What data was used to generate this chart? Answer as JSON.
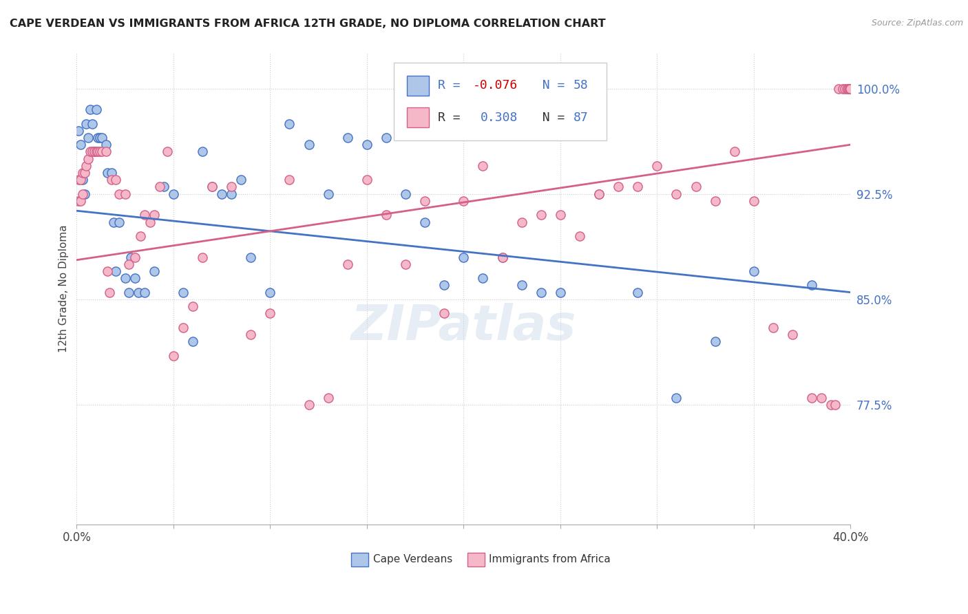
{
  "title": "CAPE VERDEAN VS IMMIGRANTS FROM AFRICA 12TH GRADE, NO DIPLOMA CORRELATION CHART",
  "source": "Source: ZipAtlas.com",
  "ylabel": "12th Grade, No Diploma",
  "xlim": [
    0.0,
    0.4
  ],
  "ylim": [
    0.69,
    1.025
  ],
  "xticks": [
    0.0,
    0.05,
    0.1,
    0.15,
    0.2,
    0.25,
    0.3,
    0.35,
    0.4
  ],
  "yticks": [
    0.775,
    0.85,
    0.925,
    1.0
  ],
  "ytick_labels": [
    "77.5%",
    "85.0%",
    "92.5%",
    "100.0%"
  ],
  "color_blue": "#aec6e8",
  "color_pink": "#f4b8c8",
  "line_blue": "#4472c4",
  "line_pink": "#d4608a",
  "R_blue": -0.076,
  "N_blue": 58,
  "R_pink": 0.308,
  "N_pink": 87,
  "legend_label_blue": "Cape Verdeans",
  "legend_label_pink": "Immigrants from Africa",
  "watermark": "ZIPatlas",
  "blue_scatter_x": [
    0.001,
    0.002,
    0.003,
    0.004,
    0.005,
    0.006,
    0.007,
    0.008,
    0.009,
    0.01,
    0.011,
    0.012,
    0.013,
    0.015,
    0.016,
    0.018,
    0.019,
    0.02,
    0.022,
    0.025,
    0.027,
    0.028,
    0.03,
    0.032,
    0.035,
    0.04,
    0.045,
    0.05,
    0.055,
    0.06,
    0.065,
    0.07,
    0.075,
    0.08,
    0.085,
    0.09,
    0.1,
    0.11,
    0.12,
    0.13,
    0.14,
    0.15,
    0.16,
    0.17,
    0.18,
    0.19,
    0.2,
    0.21,
    0.22,
    0.23,
    0.24,
    0.25,
    0.27,
    0.29,
    0.31,
    0.33,
    0.35,
    0.38
  ],
  "blue_scatter_y": [
    0.97,
    0.96,
    0.935,
    0.925,
    0.975,
    0.965,
    0.985,
    0.975,
    0.955,
    0.985,
    0.965,
    0.965,
    0.965,
    0.96,
    0.94,
    0.94,
    0.905,
    0.87,
    0.905,
    0.865,
    0.855,
    0.88,
    0.865,
    0.855,
    0.855,
    0.87,
    0.93,
    0.925,
    0.855,
    0.82,
    0.955,
    0.93,
    0.925,
    0.925,
    0.935,
    0.88,
    0.855,
    0.975,
    0.96,
    0.925,
    0.965,
    0.96,
    0.965,
    0.925,
    0.905,
    0.86,
    0.88,
    0.865,
    0.88,
    0.86,
    0.855,
    0.855,
    0.925,
    0.855,
    0.78,
    0.82,
    0.87,
    0.86
  ],
  "pink_scatter_x": [
    0.001,
    0.001,
    0.002,
    0.002,
    0.003,
    0.003,
    0.004,
    0.005,
    0.006,
    0.007,
    0.008,
    0.009,
    0.01,
    0.011,
    0.012,
    0.013,
    0.015,
    0.016,
    0.017,
    0.018,
    0.02,
    0.022,
    0.025,
    0.027,
    0.03,
    0.033,
    0.035,
    0.038,
    0.04,
    0.043,
    0.047,
    0.05,
    0.055,
    0.06,
    0.065,
    0.07,
    0.08,
    0.09,
    0.1,
    0.11,
    0.12,
    0.13,
    0.14,
    0.15,
    0.16,
    0.17,
    0.18,
    0.19,
    0.2,
    0.21,
    0.22,
    0.23,
    0.24,
    0.25,
    0.26,
    0.27,
    0.28,
    0.29,
    0.3,
    0.31,
    0.32,
    0.33,
    0.34,
    0.35,
    0.36,
    0.37,
    0.38,
    0.385,
    0.39,
    0.392,
    0.394,
    0.396,
    0.397,
    0.398,
    0.399,
    0.399,
    0.3995,
    0.3997,
    0.3998,
    0.3999,
    0.3999,
    0.39995,
    0.39997,
    0.39998,
    0.39999,
    0.4,
    0.4
  ],
  "pink_scatter_y": [
    0.935,
    0.92,
    0.935,
    0.92,
    0.94,
    0.925,
    0.94,
    0.945,
    0.95,
    0.955,
    0.955,
    0.955,
    0.955,
    0.955,
    0.955,
    0.955,
    0.955,
    0.87,
    0.855,
    0.935,
    0.935,
    0.925,
    0.925,
    0.875,
    0.88,
    0.895,
    0.91,
    0.905,
    0.91,
    0.93,
    0.955,
    0.81,
    0.83,
    0.845,
    0.88,
    0.93,
    0.93,
    0.825,
    0.84,
    0.935,
    0.775,
    0.78,
    0.875,
    0.935,
    0.91,
    0.875,
    0.92,
    0.84,
    0.92,
    0.945,
    0.88,
    0.905,
    0.91,
    0.91,
    0.895,
    0.925,
    0.93,
    0.93,
    0.945,
    0.925,
    0.93,
    0.92,
    0.955,
    0.92,
    0.83,
    0.825,
    0.78,
    0.78,
    0.775,
    0.775,
    1.0,
    1.0,
    1.0,
    1.0,
    1.0,
    1.0,
    1.0,
    1.0,
    1.0,
    1.0,
    1.0,
    1.0,
    1.0,
    1.0,
    1.0,
    1.0,
    1.0
  ]
}
